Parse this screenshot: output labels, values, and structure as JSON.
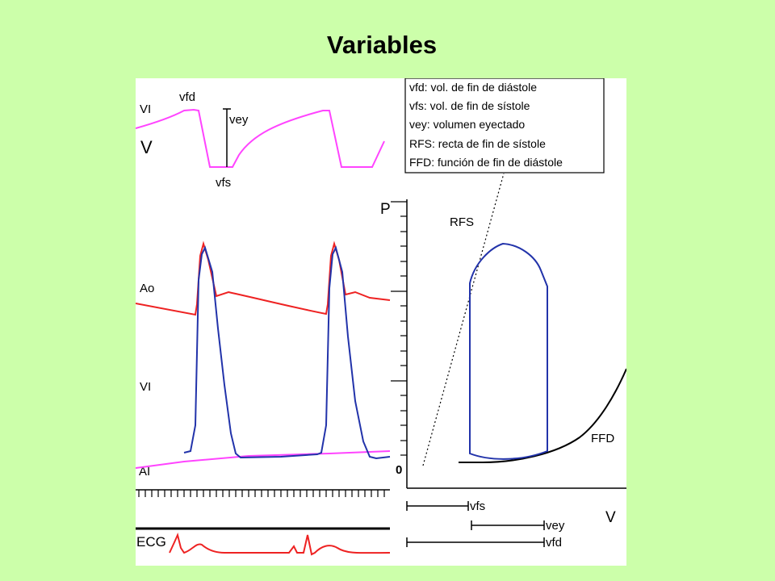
{
  "title": "Variables",
  "legend": [
    "vfd: vol. de fin de diástole",
    "vfs: vol. de fin de sístole",
    "vey: volumen eyectado",
    "RFS: recta de fin de sístole",
    "FFD: función de fin de diástole"
  ],
  "labels": {
    "vi_top": "VI",
    "v_top": "V",
    "vfd": "vfd",
    "vey": "vey",
    "vfs": "vfs",
    "ao": "Ao",
    "vi_mid": "VI",
    "ai": "AI",
    "ecg": "ECG",
    "p_axis": "P",
    "v_axis": "V",
    "rfs": "RFS",
    "ffd": "FFD",
    "zero": "0",
    "bar_vfs": "vfs",
    "bar_vey": "vey",
    "bar_vfd": "vfd"
  },
  "colors": {
    "background": "#ccffaa",
    "volume_trace": "#ff44ff",
    "aortic_pressure": "#ee2222",
    "ventricular_pressure": "#2233aa",
    "atrial_pressure": "#ff44ff",
    "ecg_trace": "#ee2222",
    "pv_loop": "#2233aa"
  }
}
